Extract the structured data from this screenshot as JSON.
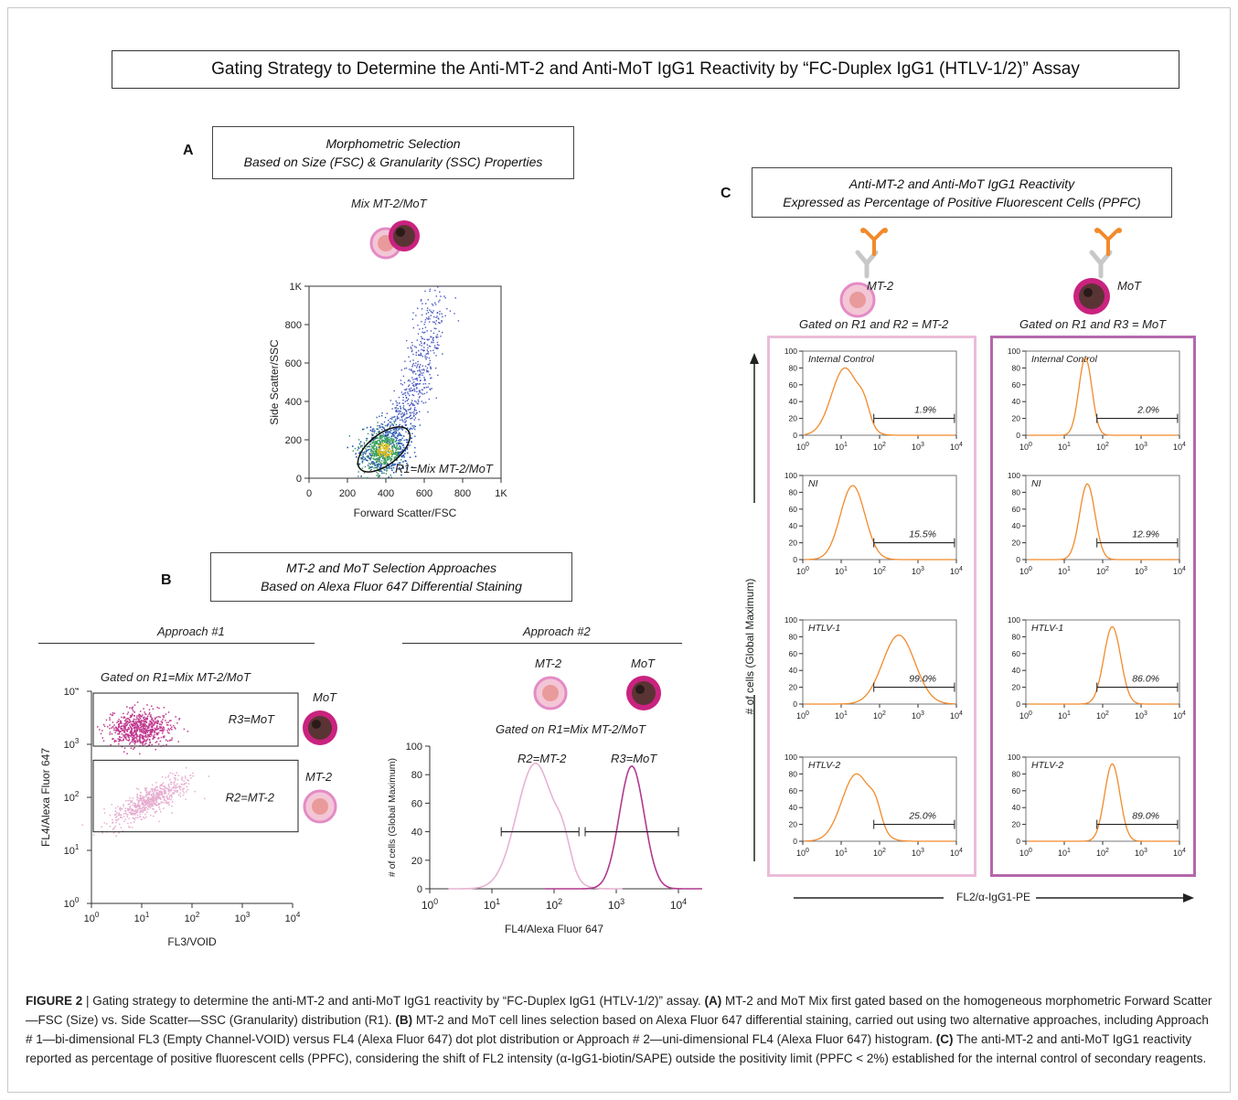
{
  "title": "Gating Strategy to Determine the Anti-MT-2 and Anti-MoT IgG1 Reactivity by “FC-Duplex IgG1 (HTLV-1/2)” Assay",
  "panel_a": {
    "letter": "A",
    "box_line1": "Morphometric Selection",
    "box_line2": "Based on Size (FSC) & Granularity (SSC) Properties",
    "mix_label": "Mix MT-2/MoT",
    "gate_label": "R1=Mix MT-2/MoT"
  },
  "panel_b": {
    "letter": "B",
    "box_line1": "MT-2 and MoT Selection Approaches",
    "box_line2": "Based on Alexa Fluor 647 Differential Staining",
    "approach1": "Approach #1",
    "approach2": "Approach #2",
    "gated1": "Gated on R1=Mix MT-2/MoT",
    "gated2": "Gated on R1=Mix MT-2/MoT",
    "r3_label": "R3=MoT",
    "r2_label": "R2=MT-2",
    "mot_label": "MoT",
    "mt2_label": "MT-2",
    "mt2_label2": "MT-2",
    "mot_label2": "MoT",
    "hist_r2": "R2=MT-2",
    "hist_r3": "R3=MoT"
  },
  "panel_c": {
    "letter": "C",
    "box_line1": "Anti-MT-2 and Anti-MoT IgG1 Reactivity",
    "box_line2": "Expressed as Percentage of Positive Fluorescent Cells (PPFC)",
    "mt2_label": "MT-2",
    "mot_label": "MoT",
    "gated_mt2": "Gated on R1 and R2 = MT-2",
    "gated_mot": "Gated on R1 and R3 = MoT",
    "y_axis": "# of cells (Global Maximum)",
    "x_axis": "FL2/α-IgG1-PE"
  },
  "colors": {
    "orange": "#f28a2b",
    "light_pink": "#e7b3d3",
    "magenta": "#b23a8e",
    "pink_frame": "#ebbcd8",
    "purple_frame": "#b468ac"
  },
  "caption": {
    "fig": "FIGURE 2",
    "intro": " | Gating strategy to determine the anti-MT-2 and anti-MoT IgG1 reactivity by “FC-Duplex IgG1 (HTLV-1/2)” assay. ",
    "a": "(A)",
    "a_text": " MT-2 and MoT Mix first gated based on the homogeneous morphometric Forward Scatter—FSC (Size) vs. Side Scatter—SSC (Granularity) distribution (R1). ",
    "b": "(B)",
    "b_text": " MT-2 and MoT cell lines selection based on Alexa Fluor 647 differential staining, carried out using two alternative approaches, including Approach # 1—bi-dimensional FL3 (Empty Channel-VOID) versus FL4 (Alexa Fluor 647) dot plot distribution or Approach # 2—uni-dimensional FL4 (Alexa Fluor 647) histogram. ",
    "c": "(C)",
    "c_text": " The anti-MT-2 and anti-MoT IgG1 reactivity reported as percentage of positive fluorescent cells (PPFC), considering the shift of FL2 intensity (α-IgG1-biotin/SAPE) outside the positivity limit (PPFC < 2%) established for the internal control of secondary reagents."
  },
  "chart_data": [
    {
      "type": "scatter",
      "panel": "A",
      "xlabel": "Forward Scatter/FSC",
      "ylabel": "Side Scatter/SSC",
      "xticks": [
        "0",
        "200",
        "400",
        "600",
        "800",
        "1K"
      ],
      "yticks": [
        "0",
        "200",
        "400",
        "600",
        "800",
        "1K"
      ],
      "xlim": [
        0,
        1000
      ],
      "ylim": [
        0,
        1000
      ],
      "gate": {
        "name": "R1=Mix MT-2/MoT",
        "center": [
          390,
          150
        ],
        "rx": 160,
        "ry": 80
      }
    },
    {
      "type": "scatter",
      "panel": "B1",
      "xlabel": "FL3/VOID",
      "ylabel": "FL4/Alexa Fluor 647",
      "xticks": [
        "10",
        "10",
        "10",
        "10",
        "10"
      ],
      "xexp": [
        "0",
        "1",
        "2",
        "3",
        "4"
      ],
      "yticks": [
        "10",
        "10",
        "10",
        "10",
        "10"
      ],
      "yexp": [
        "0",
        "1",
        "2",
        "3",
        "4"
      ],
      "series": [
        {
          "name": "R3=MoT",
          "center_log": [
            0.9,
            3.3
          ]
        },
        {
          "name": "R2=MT-2",
          "center_log": [
            1.2,
            2.0
          ]
        }
      ]
    },
    {
      "type": "line",
      "panel": "B2",
      "xlabel": "FL4/Alexa Fluor 647",
      "ylabel": "# of cells (Global Maximum)",
      "xticks": [
        "10",
        "10",
        "10",
        "10",
        "10"
      ],
      "xexp": [
        "0",
        "1",
        "2",
        "3",
        "4"
      ],
      "yticks": [
        "0",
        "20",
        "40",
        "60",
        "80",
        "100"
      ],
      "ylim": [
        0,
        100
      ],
      "series": [
        {
          "name": "R2=MT-2",
          "peak_log": 1.7,
          "peak": 88
        },
        {
          "name": "R3=MoT",
          "peak_log": 3.25,
          "peak": 86
        }
      ]
    },
    {
      "type": "line",
      "panel": "C",
      "xlabel": "FL2/α-IgG1-PE",
      "ylabel": "# of cells (Global Maximum)",
      "yticks": [
        "0",
        "20",
        "40",
        "60",
        "80",
        "100"
      ],
      "xexp": [
        "0",
        "1",
        "2",
        "3",
        "4"
      ],
      "plots": [
        {
          "group": "MT-2",
          "name": "Internal Control",
          "pct": "1.9%"
        },
        {
          "group": "MT-2",
          "name": "NI",
          "pct": "15.5%"
        },
        {
          "group": "MT-2",
          "name": "HTLV-1",
          "pct": "99.0%"
        },
        {
          "group": "MT-2",
          "name": "HTLV-2",
          "pct": "25.0%"
        },
        {
          "group": "MoT",
          "name": "Internal Control",
          "pct": "2.0%"
        },
        {
          "group": "MoT",
          "name": "NI",
          "pct": "12.9%"
        },
        {
          "group": "MoT",
          "name": "HTLV-1",
          "pct": "86.0%"
        },
        {
          "group": "MoT",
          "name": "HTLV-2",
          "pct": "89.0%"
        }
      ]
    }
  ]
}
